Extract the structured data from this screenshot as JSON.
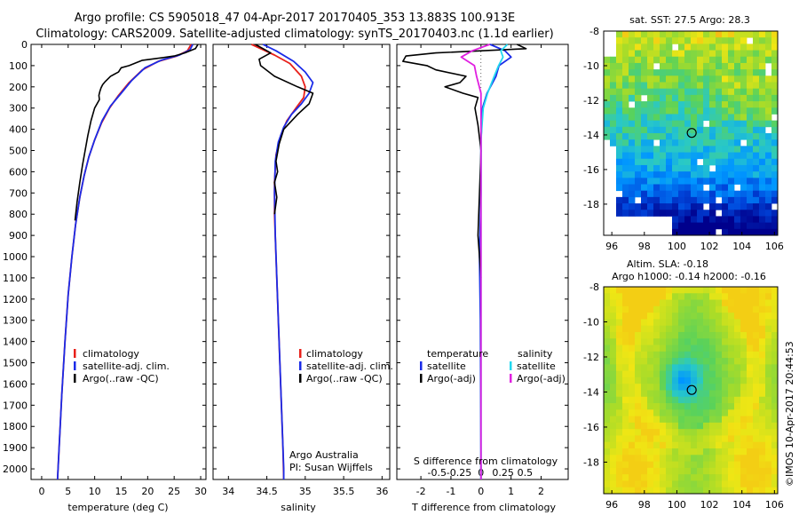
{
  "titles": {
    "line1": "Argo profile: CS 5905018_47 04-Apr-2017 20170405_353 13.883S 100.913E",
    "line2": "Climatology: CARS2009. Satellite-adjusted climatology: synTS_20170403.nc (1.1d earlier)"
  },
  "colors": {
    "climatology": "#e8201a",
    "satellite": "#1a2be8",
    "argo": "#000000",
    "sat_diff": "#22d8f0",
    "argo_sal_diff": "#e020e0"
  },
  "depth_axis": {
    "label": "",
    "ylim": [
      0,
      2050
    ],
    "ticks": [
      "0",
      "100",
      "200",
      "300",
      "400",
      "500",
      "600",
      "700",
      "800",
      "900",
      "1000",
      "1100",
      "1200",
      "1300",
      "1400",
      "1500",
      "1600",
      "1700",
      "1800",
      "1900",
      "2000"
    ]
  },
  "chart_data": [
    {
      "type": "line",
      "id": "temperature",
      "xlabel": "temperature (deg C)",
      "xlim": [
        -2,
        31
      ],
      "xticks": [
        "0",
        "5",
        "10",
        "15",
        "20",
        "25",
        "30"
      ],
      "legend": [
        "climatology",
        "satellite-adj. clim.",
        "Argo(..raw -QC)"
      ],
      "series": [
        {
          "name": "climatology",
          "key": "climatology",
          "points": [
            [
              28.2,
              0
            ],
            [
              27.5,
              30
            ],
            [
              25.5,
              55
            ],
            [
              22,
              80
            ],
            [
              19,
              120
            ],
            [
              16.5,
              180
            ],
            [
              14.5,
              240
            ],
            [
              12.8,
              300
            ],
            [
              11.3,
              370
            ],
            [
              10,
              450
            ],
            [
              8.9,
              530
            ],
            [
              8,
              620
            ],
            [
              7.2,
              720
            ],
            [
              6.4,
              850
            ],
            [
              5.7,
              1000
            ],
            [
              5,
              1180
            ],
            [
              4.4,
              1400
            ],
            [
              3.8,
              1650
            ],
            [
              3.3,
              1900
            ],
            [
              3,
              2050
            ]
          ]
        },
        {
          "name": "satellite-adj. clim.",
          "key": "satellite",
          "points": [
            [
              28.5,
              0
            ],
            [
              28,
              25
            ],
            [
              26,
              50
            ],
            [
              22.5,
              75
            ],
            [
              19.5,
              110
            ],
            [
              17,
              170
            ],
            [
              15,
              230
            ],
            [
              13,
              290
            ],
            [
              11.4,
              360
            ],
            [
              10,
              450
            ],
            [
              8.9,
              530
            ],
            [
              8,
              620
            ],
            [
              7.2,
              720
            ],
            [
              6.4,
              850
            ],
            [
              5.7,
              1000
            ],
            [
              5,
              1180
            ],
            [
              4.4,
              1400
            ],
            [
              3.8,
              1650
            ],
            [
              3.3,
              1900
            ],
            [
              3,
              2050
            ]
          ]
        },
        {
          "name": "Argo(..raw -QC)",
          "key": "argo",
          "points": [
            [
              29.5,
              0
            ],
            [
              29,
              20
            ],
            [
              27,
              40
            ],
            [
              25,
              55
            ],
            [
              23,
              62
            ],
            [
              19,
              75
            ],
            [
              18,
              85
            ],
            [
              16.5,
              100
            ],
            [
              15,
              110
            ],
            [
              14.5,
              130
            ],
            [
              13,
              150
            ],
            [
              12,
              175
            ],
            [
              11.5,
              190
            ],
            [
              11.2,
              205
            ],
            [
              11,
              220
            ],
            [
              10.8,
              240
            ],
            [
              10.9,
              260
            ],
            [
              10,
              300
            ],
            [
              9.3,
              360
            ],
            [
              8.7,
              430
            ],
            [
              8.2,
              500
            ],
            [
              7.7,
              570
            ],
            [
              7.2,
              650
            ],
            [
              6.7,
              740
            ],
            [
              6.3,
              830
            ]
          ]
        }
      ]
    },
    {
      "type": "line",
      "id": "salinity",
      "xlabel": "salinity",
      "xlim": [
        33.8,
        36.1
      ],
      "xticks": [
        "34",
        "34.5",
        "35",
        "35.5",
        "36"
      ],
      "legend": [
        "climatology",
        "satellite-adj. clim.",
        "Argo(..raw -QC)"
      ],
      "annotation": [
        "Argo Australia",
        "PI: Susan Wijffels"
      ],
      "series": [
        {
          "name": "climatology",
          "key": "climatology",
          "points": [
            [
              34.3,
              0
            ],
            [
              34.42,
              20
            ],
            [
              34.6,
              50
            ],
            [
              34.8,
              90
            ],
            [
              34.95,
              150
            ],
            [
              35.0,
              200
            ],
            [
              34.98,
              250
            ],
            [
              34.88,
              300
            ],
            [
              34.76,
              360
            ],
            [
              34.68,
              430
            ],
            [
              34.62,
              520
            ],
            [
              34.6,
              650
            ],
            [
              34.6,
              800
            ],
            [
              34.62,
              1000
            ],
            [
              34.65,
              1300
            ],
            [
              34.68,
              1600
            ],
            [
              34.71,
              1900
            ],
            [
              34.72,
              2050
            ]
          ]
        },
        {
          "name": "satellite-adj. clim.",
          "key": "satellite",
          "points": [
            [
              34.45,
              0
            ],
            [
              34.62,
              30
            ],
            [
              34.85,
              80
            ],
            [
              35.0,
              130
            ],
            [
              35.1,
              180
            ],
            [
              35.05,
              230
            ],
            [
              34.95,
              280
            ],
            [
              34.82,
              330
            ],
            [
              34.72,
              390
            ],
            [
              34.65,
              460
            ],
            [
              34.61,
              550
            ],
            [
              34.6,
              700
            ],
            [
              34.61,
              900
            ],
            [
              34.63,
              1100
            ],
            [
              34.66,
              1400
            ],
            [
              34.69,
              1700
            ],
            [
              34.72,
              2000
            ],
            [
              34.72,
              2050
            ]
          ]
        },
        {
          "name": "Argo(..raw -QC)",
          "key": "argo",
          "points": [
            [
              34.35,
              0
            ],
            [
              34.55,
              40
            ],
            [
              34.4,
              70
            ],
            [
              34.42,
              100
            ],
            [
              34.6,
              150
            ],
            [
              34.9,
              200
            ],
            [
              35.1,
              230
            ],
            [
              35.05,
              280
            ],
            [
              34.9,
              330
            ],
            [
              34.72,
              400
            ],
            [
              34.66,
              470
            ],
            [
              34.62,
              550
            ],
            [
              34.64,
              600
            ],
            [
              34.6,
              650
            ],
            [
              34.63,
              720
            ],
            [
              34.6,
              800
            ]
          ]
        }
      ]
    },
    {
      "type": "line",
      "id": "differences",
      "xlabel": "T difference from climatology",
      "xlim": [
        -2.8,
        2.9
      ],
      "xticks": [
        "-2",
        "-1",
        "0",
        "1",
        "2"
      ],
      "top_axis_label": "S difference from climatology",
      "top_ticks": [
        "-0.5",
        "-0.25",
        "0",
        "0.25",
        "0.5"
      ],
      "legend_groups": {
        "temperature": [
          "satellite",
          "Argo(-adj)"
        ],
        "salinity": [
          "satellite",
          "Argo(-adj)"
        ]
      },
      "series": [
        {
          "name": "satellite",
          "group": "temperature",
          "key": "satellite",
          "points": [
            [
              0.3,
              0
            ],
            [
              0.8,
              30
            ],
            [
              1.0,
              60
            ],
            [
              0.6,
              100
            ],
            [
              0.5,
              150
            ],
            [
              0.2,
              230
            ],
            [
              0.05,
              300
            ],
            [
              0,
              450
            ],
            [
              0,
              700
            ],
            [
              -0.05,
              1000
            ],
            [
              -0.02,
              1300
            ],
            [
              -0.01,
              1700
            ],
            [
              0,
              2050
            ]
          ]
        },
        {
          "name": "Argo(-adj)",
          "group": "temperature",
          "key": "argo",
          "points": [
            [
              1.2,
              0
            ],
            [
              1.5,
              20
            ],
            [
              -1.5,
              40
            ],
            [
              -2.5,
              55
            ],
            [
              -2.6,
              80
            ],
            [
              -1.8,
              100
            ],
            [
              -1.5,
              120
            ],
            [
              -0.5,
              150
            ],
            [
              -0.7,
              180
            ],
            [
              -1.2,
              200
            ],
            [
              -0.6,
              230
            ],
            [
              -0.1,
              250
            ],
            [
              -0.2,
              300
            ],
            [
              -0.1,
              380
            ],
            [
              0,
              500
            ],
            [
              -0.05,
              700
            ],
            [
              -0.1,
              900
            ],
            [
              0,
              1100
            ]
          ]
        },
        {
          "name": "satellite",
          "group": "salinity",
          "key": "sat_diff",
          "points": [
            [
              1.2,
              0
            ],
            [
              0.9,
              30
            ],
            [
              1.0,
              60
            ],
            [
              0.8,
              100
            ],
            [
              0.6,
              150
            ],
            [
              0.3,
              230
            ],
            [
              0.1,
              300
            ],
            [
              0,
              450
            ],
            [
              0,
              800
            ],
            [
              0,
              1100
            ],
            [
              0,
              1500
            ],
            [
              0,
              1800
            ],
            [
              0,
              2050
            ]
          ]
        },
        {
          "name": "Argo(-adj)",
          "group": "salinity",
          "key": "argo_sal_diff",
          "points": [
            [
              0.4,
              0
            ],
            [
              -0.4,
              30
            ],
            [
              -0.9,
              60
            ],
            [
              -0.3,
              100
            ],
            [
              -0.2,
              150
            ],
            [
              0,
              230
            ],
            [
              0,
              400
            ],
            [
              0,
              700
            ],
            [
              0,
              1100
            ],
            [
              0,
              1500
            ],
            [
              0,
              1900
            ],
            [
              0,
              2050
            ]
          ]
        }
      ]
    },
    {
      "type": "heatmap",
      "id": "sst-map",
      "title": "sat. SST: 27.5 Argo: 28.3",
      "xlim": [
        95.5,
        106.2
      ],
      "ylim": [
        -19.8,
        -8
      ],
      "xticks": [
        "96",
        "98",
        "100",
        "102",
        "104",
        "106"
      ],
      "yticks": [
        "-8",
        "-10",
        "-12",
        "-14",
        "-16",
        "-18"
      ],
      "argo_position": [
        100.913,
        -13.883
      ]
    },
    {
      "type": "heatmap",
      "id": "sla-map",
      "title_line1": "Altim. SLA: -0.18",
      "title_line2": "Argo h1000: -0.14 h2000: -0.16",
      "xlim": [
        95.5,
        106.2
      ],
      "ylim": [
        -19.8,
        -8
      ],
      "xticks": [
        "96",
        "98",
        "100",
        "102",
        "104",
        "106"
      ],
      "yticks": [
        "-8",
        "-10",
        "-12",
        "-14",
        "-16",
        "-18"
      ],
      "argo_position": [
        100.913,
        -13.883
      ]
    }
  ],
  "watermark": "©IMOS 10-Apr-2017 20:44:53"
}
